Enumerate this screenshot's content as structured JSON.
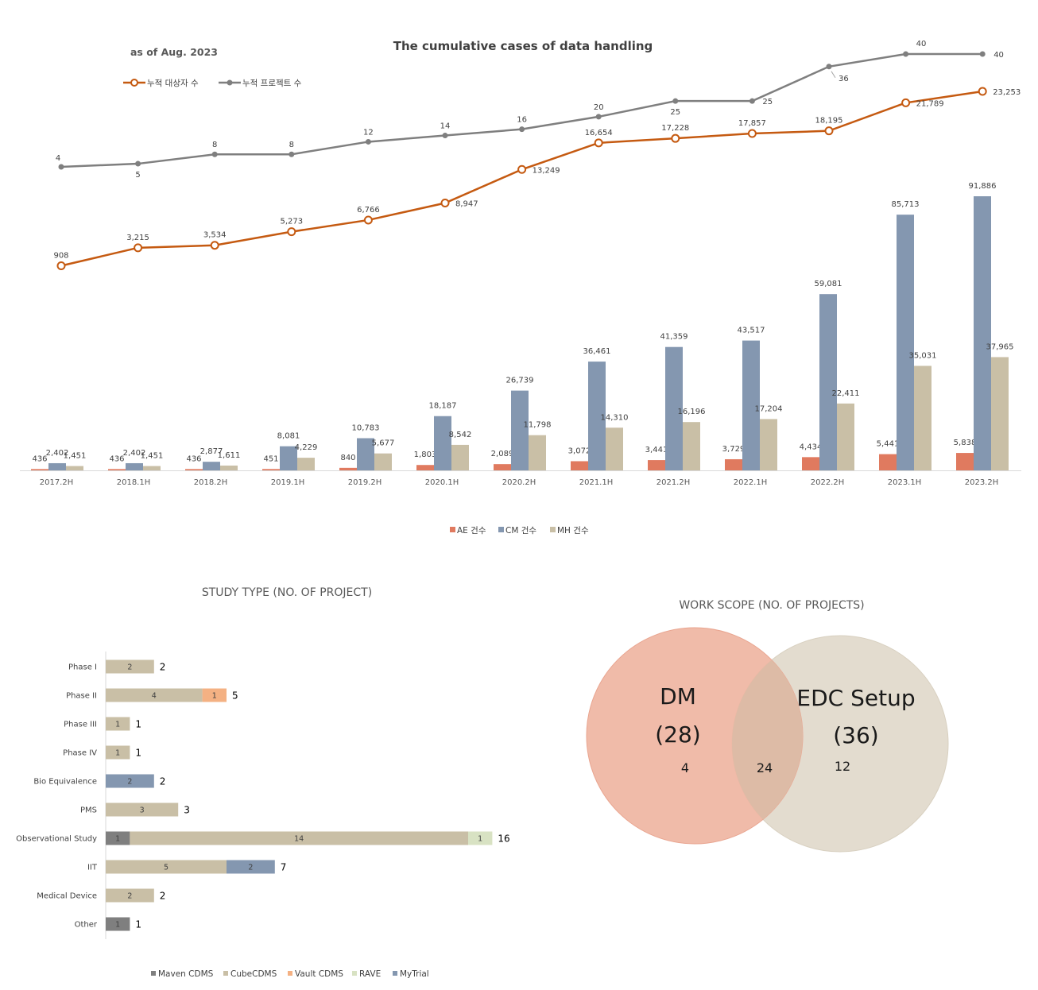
{
  "chart_data": [
    {
      "type": "line",
      "title": "The cumulative cases of data handling",
      "subtitle": "as of Aug. 2023",
      "x": [
        "2017.2H",
        "2018.1H",
        "2018.2H",
        "2019.1H",
        "2019.2H",
        "2020.1H",
        "2020.2H",
        "2021.1H",
        "2021.2H",
        "2022.1H",
        "2022.2H",
        "2023.1H",
        "2023.2H"
      ],
      "series": [
        {
          "name": "누적 대상자 수",
          "values": [
            908,
            3215,
            3534,
            5273,
            6766,
            8947,
            13249,
            16654,
            17228,
            17857,
            18195,
            21789,
            23253
          ],
          "labels": [
            "908",
            "3,215",
            "3,534",
            "5,273",
            "6,766",
            "8,947",
            "13,249",
            "16,654",
            "17,228",
            "17,857",
            "18,195",
            "21,789",
            "23,253"
          ],
          "color": "#C55A11"
        },
        {
          "name": "누적 프로젝트 수",
          "values": [
            4,
            5,
            8,
            8,
            12,
            14,
            16,
            20,
            25,
            25,
            36,
            40,
            40
          ],
          "labels": [
            "4",
            "5",
            "8",
            "8",
            "12",
            "14",
            "16",
            "20",
            "25",
            "25",
            "36",
            "40",
            "40"
          ],
          "color": "#7F7F7F"
        }
      ],
      "legend_position": "top-left"
    },
    {
      "type": "bar",
      "categories": [
        "2017.2H",
        "2018.1H",
        "2018.2H",
        "2019.1H",
        "2019.2H",
        "2020.1H",
        "2020.2H",
        "2021.1H",
        "2021.2H",
        "2022.1H",
        "2022.2H",
        "2023.1H",
        "2023.2H"
      ],
      "series": [
        {
          "name": "AE 건수",
          "values": [
            436,
            436,
            436,
            451,
            840,
            1803,
            2089,
            3072,
            3441,
            3729,
            4434,
            5441,
            5838
          ],
          "labels": [
            "436",
            "436",
            "436",
            "451",
            "840",
            "1,803",
            "2,089",
            "3,072",
            "3,441",
            "3,729",
            "4,434",
            "5,441",
            "5,838"
          ],
          "color": "#E07A5F"
        },
        {
          "name": "CM 건수",
          "values": [
            2402,
            2402,
            2877,
            8081,
            10783,
            18187,
            26739,
            36461,
            41359,
            43517,
            59081,
            85713,
            91886
          ],
          "labels": [
            "2,402",
            "2,402",
            "2,877",
            "8,081",
            "10,783",
            "18,187",
            "26,739",
            "36,461",
            "41,359",
            "43,517",
            "59,081",
            "85,713",
            "91,886"
          ],
          "color": "#8497B0"
        },
        {
          "name": "MH 건수",
          "values": [
            1451,
            1451,
            1611,
            4229,
            5677,
            8542,
            11798,
            14310,
            16196,
            17204,
            22411,
            35031,
            37965
          ],
          "labels": [
            "1,451",
            "1,451",
            "1,611",
            "4,229",
            "5,677",
            "8,542",
            "11,798",
            "14,310",
            "16,196",
            "17,204",
            "22,411",
            "35,031",
            "37,965"
          ],
          "color": "#C9BFA6"
        }
      ],
      "legend_position": "bottom"
    },
    {
      "type": "bar",
      "orientation": "horizontal-stacked",
      "title": "STUDY TYPE (NO. OF PROJECT)",
      "categories": [
        "Phase I",
        "Phase II",
        "Phase III",
        "Phase IV",
        "Bio Equivalence",
        "PMS",
        "Observational Study",
        "IIT",
        "Medical Device",
        "Other"
      ],
      "series": [
        {
          "name": "Maven CDMS",
          "values": [
            0,
            0,
            0,
            0,
            0,
            0,
            1,
            0,
            0,
            1
          ],
          "color": "#7F7F7F"
        },
        {
          "name": "CubeCDMS",
          "values": [
            2,
            4,
            1,
            1,
            0,
            3,
            14,
            5,
            2,
            0
          ],
          "color": "#C9BFA6"
        },
        {
          "name": "Vault CDMS",
          "values": [
            0,
            1,
            0,
            0,
            0,
            0,
            0,
            0,
            0,
            0
          ],
          "color": "#F4B183"
        },
        {
          "name": "RAVE",
          "values": [
            0,
            0,
            0,
            0,
            0,
            0,
            1,
            0,
            0,
            0
          ],
          "color": "#D8E2C3"
        },
        {
          "name": "MyTrial",
          "values": [
            0,
            0,
            0,
            0,
            2,
            0,
            0,
            2,
            0,
            0
          ],
          "color": "#8497B0"
        }
      ],
      "totals": [
        2,
        5,
        1,
        1,
        2,
        3,
        16,
        7,
        2,
        1
      ],
      "legend_position": "bottom"
    },
    {
      "type": "venn",
      "title": "WORK SCOPE (NO. OF PROJECTS)",
      "sets": [
        {
          "name": "DM",
          "total_label": "(28)",
          "only": "4",
          "color": "#EFB5A2"
        },
        {
          "name": "EDC Setup",
          "total_label": "(36)",
          "only": "12",
          "color": "#E3DCCF"
        }
      ],
      "overlap": "24"
    }
  ]
}
